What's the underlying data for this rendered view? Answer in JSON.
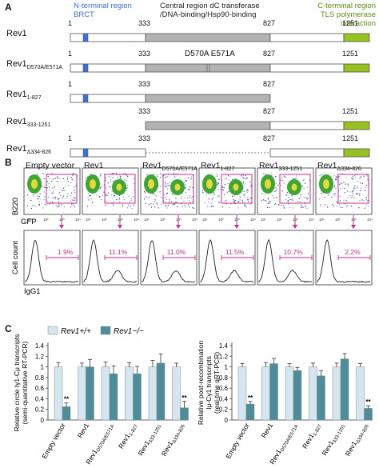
{
  "panelA": {
    "letter": "A",
    "header": {
      "nterm_title": "N-terminal region",
      "nterm_sub": "BRCT",
      "central_title": "Central region dC transferase",
      "central_sub": "/DNA-binding/Hsp90-binding",
      "cterm_title": "C-terminal region",
      "cterm_sub": "TLS polymerase interaction"
    },
    "rows": [
      {
        "name": "Rev1",
        "sub": "",
        "ticks": [
          "1",
          "333",
          "827",
          "1251"
        ]
      },
      {
        "name": "Rev1",
        "sub": "D570A/E571A",
        "ticks": [
          "1",
          "333",
          "827",
          "1251"
        ],
        "mutation": "D570A E571A"
      },
      {
        "name": "Rev1",
        "sub": "1-827",
        "ticks": [
          "1",
          "333",
          "827"
        ]
      },
      {
        "name": "Rev1",
        "sub": "333-1251",
        "ticks": [
          "333",
          "827",
          "1251"
        ]
      },
      {
        "name": "Rev1",
        "sub": "Δ334-826",
        "ticks": [
          "1",
          "333",
          "827",
          "1251"
        ]
      }
    ],
    "colors": {
      "brct": "#3b6fd9",
      "central": "#b3b3b3",
      "tls": "#96c11f"
    }
  },
  "panelB": {
    "letter": "B",
    "titles": [
      {
        "name": "Empty vector",
        "sub": ""
      },
      {
        "name": "Rev1",
        "sub": ""
      },
      {
        "name": "Rev1",
        "sub": "D570A/E571A"
      },
      {
        "name": "Rev1",
        "sub": "1-827"
      },
      {
        "name": "Rev1",
        "sub": "333-1251"
      },
      {
        "name": "Rev1",
        "sub": "Δ334-826"
      }
    ],
    "y_label_top": "B220",
    "x_label_top": "GFP",
    "y_label_bottom": "Cell count",
    "x_label_bottom": "IgG1",
    "percents": [
      "1.9%",
      "11.1%",
      "11.0%",
      "11.5%",
      "10.7%",
      "2.2%"
    ],
    "gate_color": "#cc2f8c"
  },
  "panelC": {
    "letter": "C",
    "legend": {
      "wt": "Rev1+/+",
      "ko": "Rev1−/−"
    },
    "colors": {
      "wt": "#d6e6ee",
      "ko": "#4e8c98"
    },
    "left": {
      "ylabel1": "Relative circle Iγ1-Cμ transcripts",
      "ylabel2": "(semi-quantitative RT-PCR)",
      "yticks": [
        "0",
        "0.2",
        "0.4",
        "0.6",
        "0.8",
        "1",
        "1.2",
        "1.4"
      ],
      "stars": [
        "**",
        "**"
      ]
    },
    "right": {
      "ylabel1": "Relative post-recombination",
      "ylabel2": "Iμ-Cγ1 transcripts",
      "ylabel3": "(real-time qRT-PCR)",
      "yticks": [
        "0",
        "0.2",
        "0.4",
        "0.6",
        "0.8",
        "1",
        "1.2",
        "1.4"
      ],
      "stars": [
        "**",
        "**"
      ]
    },
    "categories": [
      {
        "name": "Empty vector",
        "sub": ""
      },
      {
        "name": "Rev1",
        "sub": ""
      },
      {
        "name": "Rev1",
        "sub": "D570A/E571A"
      },
      {
        "name": "Rev1",
        "sub": "1-827"
      },
      {
        "name": "Rev1",
        "sub": "333-1251"
      },
      {
        "name": "Rev1",
        "sub": "Δ334-826"
      }
    ]
  },
  "chart_data": [
    {
      "type": "bar",
      "categories": [
        "Empty vector",
        "Rev1",
        "Rev1 D570A/E571A",
        "Rev1 1-827",
        "Rev1 333-1251",
        "Rev1 Δ334-826"
      ],
      "series": [
        {
          "name": "Rev1+/+",
          "values": [
            1.0,
            1.0,
            1.0,
            1.0,
            1.0,
            1.0
          ],
          "errors": [
            0.08,
            0.07,
            0.09,
            0.08,
            0.12,
            0.07
          ]
        },
        {
          "name": "Rev1−/−",
          "values": [
            0.25,
            1.0,
            0.87,
            0.87,
            1.07,
            0.23
          ],
          "errors": [
            0.07,
            0.14,
            0.15,
            0.14,
            0.17,
            0.12
          ]
        }
      ],
      "ylabel": "Relative circle Iγ1-Cμ transcripts (semi-quantitative RT-PCR)",
      "ylim": [
        0,
        1.4
      ]
    },
    {
      "type": "bar",
      "categories": [
        "Empty vector",
        "Rev1",
        "Rev1 D570A/E571A",
        "Rev1 1-827",
        "Rev1 333-1251",
        "Rev1 Δ334-826"
      ],
      "series": [
        {
          "name": "Rev1+/+",
          "values": [
            1.0,
            1.0,
            1.0,
            1.0,
            1.0,
            1.0
          ],
          "errors": [
            0.06,
            0.08,
            0.06,
            0.07,
            0.07,
            0.06
          ]
        },
        {
          "name": "Rev1−/−",
          "values": [
            0.3,
            1.06,
            0.93,
            0.83,
            1.15,
            0.22
          ],
          "errors": [
            0.05,
            0.1,
            0.06,
            0.1,
            0.1,
            0.05
          ]
        }
      ],
      "ylabel": "Relative post-recombination Iμ-Cγ1 transcripts (real-time qRT-PCR)",
      "ylim": [
        0,
        1.4
      ]
    }
  ]
}
